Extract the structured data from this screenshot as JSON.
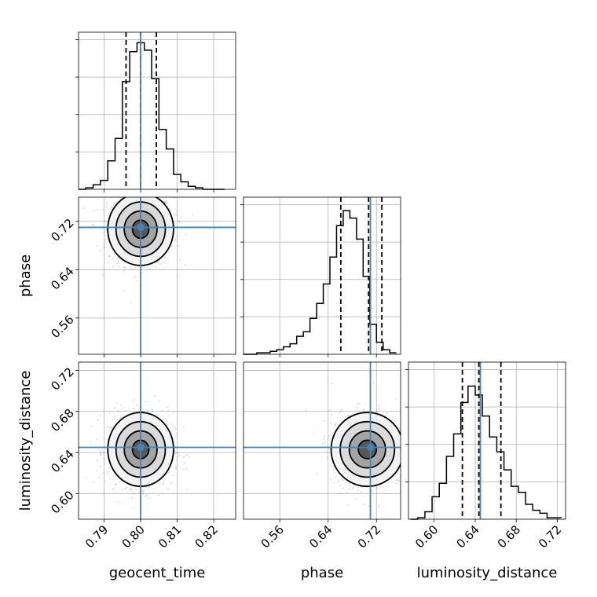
{
  "chart_data": {
    "type": "corner",
    "parameters": [
      {
        "name": "geocent_time",
        "label": "geocent_time",
        "range": [
          0.783,
          0.826
        ],
        "ticks": [
          0.79,
          0.8,
          0.81,
          0.82
        ],
        "tick_labels": [
          "0.79",
          "0.80",
          "0.81",
          "0.82"
        ],
        "truth": 0.8,
        "quantiles": [
          0.796,
          0.8,
          0.8043
        ]
      },
      {
        "name": "phase",
        "label": "phase",
        "range": [
          0.5,
          0.76
        ],
        "ticks": [
          0.56,
          0.64,
          0.72
        ],
        "tick_labels": [
          "0.56",
          "0.64",
          "0.72"
        ],
        "truth": 0.71,
        "quantiles": [
          0.661,
          0.707,
          0.729
        ]
      },
      {
        "name": "luminosity_distance",
        "label": "luminosity_distance",
        "range": [
          0.575,
          0.728
        ],
        "ticks": [
          0.6,
          0.64,
          0.68,
          0.72
        ],
        "tick_labels": [
          "0.60",
          "0.64",
          "0.68",
          "0.72"
        ],
        "truth": 0.645,
        "quantiles": [
          0.6275,
          0.6435,
          0.665
        ]
      }
    ],
    "histograms": [
      {
        "param": "geocent_time",
        "bin_edges": [
          0.783,
          0.785,
          0.787,
          0.789,
          0.791,
          0.793,
          0.795,
          0.797,
          0.799,
          0.801,
          0.803,
          0.805,
          0.807,
          0.809,
          0.811,
          0.813,
          0.815,
          0.817,
          0.819,
          0.821,
          0.823
        ],
        "counts": [
          0.0,
          0.01,
          0.03,
          0.06,
          0.19,
          0.34,
          0.72,
          0.92,
          0.98,
          0.93,
          0.74,
          0.4,
          0.27,
          0.1,
          0.05,
          0.02,
          0.01,
          0.0,
          0.0,
          0.0
        ]
      },
      {
        "param": "phase",
        "bin_edges": [
          0.5,
          0.511,
          0.522,
          0.533,
          0.544,
          0.555,
          0.566,
          0.577,
          0.588,
          0.599,
          0.61,
          0.621,
          0.632,
          0.643,
          0.654,
          0.665,
          0.676,
          0.687,
          0.698,
          0.709,
          0.72,
          0.731,
          0.742,
          0.753
        ],
        "counts": [
          0.0,
          0.0,
          0.01,
          0.01,
          0.02,
          0.03,
          0.05,
          0.07,
          0.12,
          0.15,
          0.24,
          0.34,
          0.47,
          0.65,
          0.86,
          0.96,
          0.91,
          0.77,
          0.52,
          0.2,
          0.08,
          0.03,
          0.01
        ]
      },
      {
        "param": "luminosity_distance",
        "bin_edges": [
          0.577,
          0.584,
          0.591,
          0.598,
          0.605,
          0.612,
          0.619,
          0.626,
          0.633,
          0.64,
          0.647,
          0.654,
          0.661,
          0.668,
          0.675,
          0.682,
          0.689,
          0.696,
          0.703,
          0.71,
          0.717,
          0.724
        ],
        "counts": [
          0.0,
          0.01,
          0.05,
          0.15,
          0.24,
          0.42,
          0.57,
          0.78,
          0.89,
          0.83,
          0.69,
          0.55,
          0.45,
          0.33,
          0.22,
          0.18,
          0.1,
          0.06,
          0.04,
          0.01,
          0.01
        ]
      }
    ],
    "pairs": [
      {
        "x_param": "geocent_time",
        "y_param": "phase",
        "center": [
          0.8,
          0.707
        ],
        "sigma": [
          0.0045,
          0.03
        ],
        "contour_levels": [
          0.5,
          1.0,
          1.5,
          2.0
        ]
      },
      {
        "x_param": "geocent_time",
        "y_param": "luminosity_distance",
        "center": [
          0.8,
          0.643
        ],
        "sigma": [
          0.0045,
          0.018
        ],
        "contour_levels": [
          0.5,
          1.0,
          1.5,
          2.0
        ]
      },
      {
        "x_param": "phase",
        "y_param": "luminosity_distance",
        "center": [
          0.705,
          0.643
        ],
        "sigma": [
          0.03,
          0.018
        ],
        "contour_levels": [
          0.5,
          1.0,
          1.5,
          2.0
        ]
      }
    ],
    "truth_color": "#4682b4",
    "hist_color": "#000000",
    "grid": true,
    "legend": "none"
  }
}
